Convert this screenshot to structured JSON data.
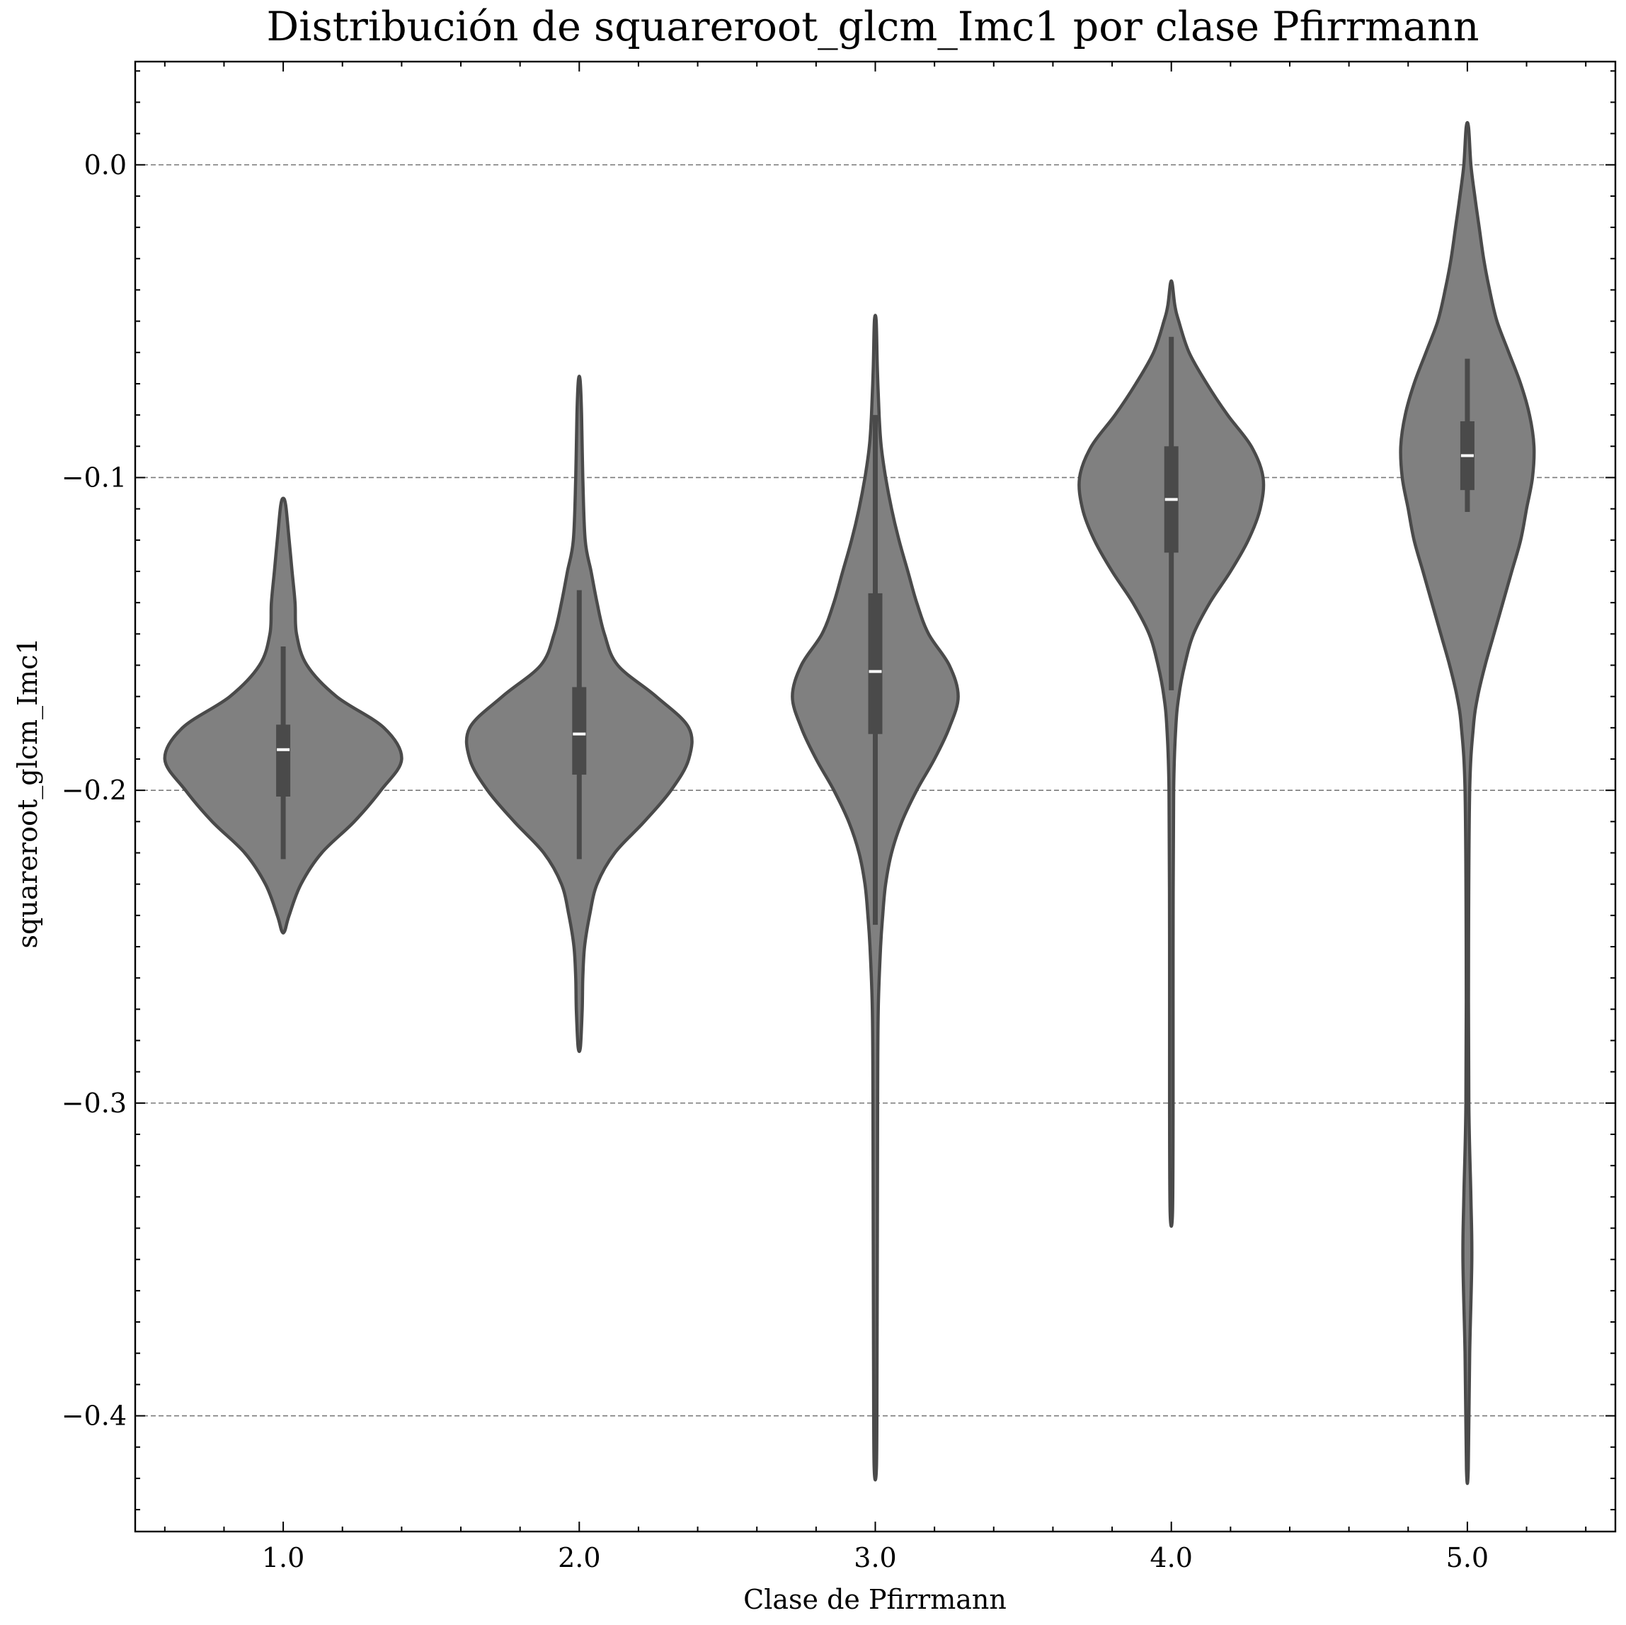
{
  "chart_data": {
    "type": "violin",
    "title": "Distribución de squareroot_glcm_Imc1 por clase Pfirrmann",
    "xlabel": "Clase de Pfirrmann",
    "ylabel": "squareroot_glcm_Imc1",
    "categories": [
      "1.0",
      "2.0",
      "3.0",
      "4.0",
      "5.0"
    ],
    "y_ticks": [
      0.0,
      -0.1,
      -0.2,
      -0.3,
      -0.4
    ],
    "y_tick_labels": [
      "0.0",
      "−0.1",
      "−0.2",
      "−0.3",
      "−0.4"
    ],
    "ylim": [
      -0.437,
      0.033
    ],
    "xlim": [
      0.5,
      5.5
    ],
    "grid": "y-dashed",
    "color": "#808080",
    "edge_color": "#4a4a4a",
    "violins": [
      {
        "category": "1.0",
        "min": -0.245,
        "max": -0.107,
        "q1": -0.202,
        "median": -0.187,
        "q3": -0.179,
        "whisker_low": -0.222,
        "whisker_high": -0.154,
        "profile": [
          [
            -0.245,
            0.005
          ],
          [
            -0.24,
            0.02
          ],
          [
            -0.23,
            0.06
          ],
          [
            -0.22,
            0.13
          ],
          [
            -0.21,
            0.24
          ],
          [
            -0.2,
            0.33
          ],
          [
            -0.19,
            0.4
          ],
          [
            -0.18,
            0.34
          ],
          [
            -0.17,
            0.18
          ],
          [
            -0.16,
            0.08
          ],
          [
            -0.15,
            0.045
          ],
          [
            -0.14,
            0.04
          ],
          [
            -0.13,
            0.03
          ],
          [
            -0.12,
            0.02
          ],
          [
            -0.11,
            0.01
          ],
          [
            -0.107,
            0.004
          ]
        ]
      },
      {
        "category": "2.0",
        "min": -0.282,
        "max": -0.069,
        "q1": -0.195,
        "median": -0.182,
        "q3": -0.167,
        "whisker_low": -0.222,
        "whisker_high": -0.136,
        "profile": [
          [
            -0.282,
            0.004
          ],
          [
            -0.27,
            0.01
          ],
          [
            -0.26,
            0.012
          ],
          [
            -0.25,
            0.018
          ],
          [
            -0.24,
            0.035
          ],
          [
            -0.23,
            0.06
          ],
          [
            -0.22,
            0.12
          ],
          [
            -0.21,
            0.22
          ],
          [
            -0.2,
            0.31
          ],
          [
            -0.19,
            0.37
          ],
          [
            -0.18,
            0.37
          ],
          [
            -0.17,
            0.26
          ],
          [
            -0.16,
            0.13
          ],
          [
            -0.15,
            0.085
          ],
          [
            -0.14,
            0.06
          ],
          [
            -0.13,
            0.04
          ],
          [
            -0.12,
            0.02
          ],
          [
            -0.1,
            0.012
          ],
          [
            -0.08,
            0.008
          ],
          [
            -0.069,
            0.003
          ]
        ]
      },
      {
        "category": "3.0",
        "min": -0.416,
        "max": -0.05,
        "q1": -0.182,
        "median": -0.162,
        "q3": -0.137,
        "whisker_low": -0.243,
        "whisker_high": -0.08,
        "profile": [
          [
            -0.416,
            0.004
          ],
          [
            -0.38,
            0.006
          ],
          [
            -0.3,
            0.008
          ],
          [
            -0.27,
            0.01
          ],
          [
            -0.25,
            0.018
          ],
          [
            -0.24,
            0.025
          ],
          [
            -0.23,
            0.035
          ],
          [
            -0.22,
            0.055
          ],
          [
            -0.21,
            0.09
          ],
          [
            -0.2,
            0.14
          ],
          [
            -0.19,
            0.2
          ],
          [
            -0.18,
            0.25
          ],
          [
            -0.17,
            0.28
          ],
          [
            -0.16,
            0.25
          ],
          [
            -0.15,
            0.18
          ],
          [
            -0.14,
            0.14
          ],
          [
            -0.13,
            0.11
          ],
          [
            -0.12,
            0.08
          ],
          [
            -0.11,
            0.055
          ],
          [
            -0.1,
            0.035
          ],
          [
            -0.09,
            0.02
          ],
          [
            -0.08,
            0.013
          ],
          [
            -0.065,
            0.007
          ],
          [
            -0.05,
            0.003
          ]
        ]
      },
      {
        "category": "4.0",
        "min": -0.335,
        "max": -0.038,
        "q1": -0.124,
        "median": -0.107,
        "q3": -0.09,
        "whisker_low": -0.168,
        "whisker_high": -0.055,
        "profile": [
          [
            -0.335,
            0.004
          ],
          [
            -0.3,
            0.006
          ],
          [
            -0.25,
            0.006
          ],
          [
            -0.2,
            0.008
          ],
          [
            -0.18,
            0.015
          ],
          [
            -0.17,
            0.025
          ],
          [
            -0.16,
            0.045
          ],
          [
            -0.15,
            0.075
          ],
          [
            -0.14,
            0.13
          ],
          [
            -0.13,
            0.2
          ],
          [
            -0.12,
            0.26
          ],
          [
            -0.11,
            0.3
          ],
          [
            -0.1,
            0.31
          ],
          [
            -0.09,
            0.27
          ],
          [
            -0.08,
            0.19
          ],
          [
            -0.07,
            0.12
          ],
          [
            -0.06,
            0.06
          ],
          [
            -0.05,
            0.025
          ],
          [
            -0.045,
            0.012
          ],
          [
            -0.038,
            0.003
          ]
        ]
      },
      {
        "category": "5.0",
        "min": -0.417,
        "max": 0.012,
        "q1": -0.104,
        "median": -0.093,
        "q3": -0.082,
        "whisker_low": -0.111,
        "whisker_high": -0.062,
        "profile": [
          [
            -0.417,
            0.003
          ],
          [
            -0.38,
            0.008
          ],
          [
            -0.35,
            0.015
          ],
          [
            -0.33,
            0.012
          ],
          [
            -0.3,
            0.005
          ],
          [
            -0.25,
            0.004
          ],
          [
            -0.2,
            0.008
          ],
          [
            -0.18,
            0.02
          ],
          [
            -0.17,
            0.035
          ],
          [
            -0.16,
            0.06
          ],
          [
            -0.15,
            0.09
          ],
          [
            -0.14,
            0.12
          ],
          [
            -0.13,
            0.15
          ],
          [
            -0.12,
            0.18
          ],
          [
            -0.11,
            0.2
          ],
          [
            -0.1,
            0.22
          ],
          [
            -0.09,
            0.225
          ],
          [
            -0.08,
            0.21
          ],
          [
            -0.07,
            0.18
          ],
          [
            -0.06,
            0.14
          ],
          [
            -0.05,
            0.1
          ],
          [
            -0.04,
            0.075
          ],
          [
            -0.03,
            0.055
          ],
          [
            -0.02,
            0.04
          ],
          [
            -0.01,
            0.025
          ],
          [
            0.0,
            0.012
          ],
          [
            0.012,
            0.004
          ]
        ]
      }
    ]
  }
}
